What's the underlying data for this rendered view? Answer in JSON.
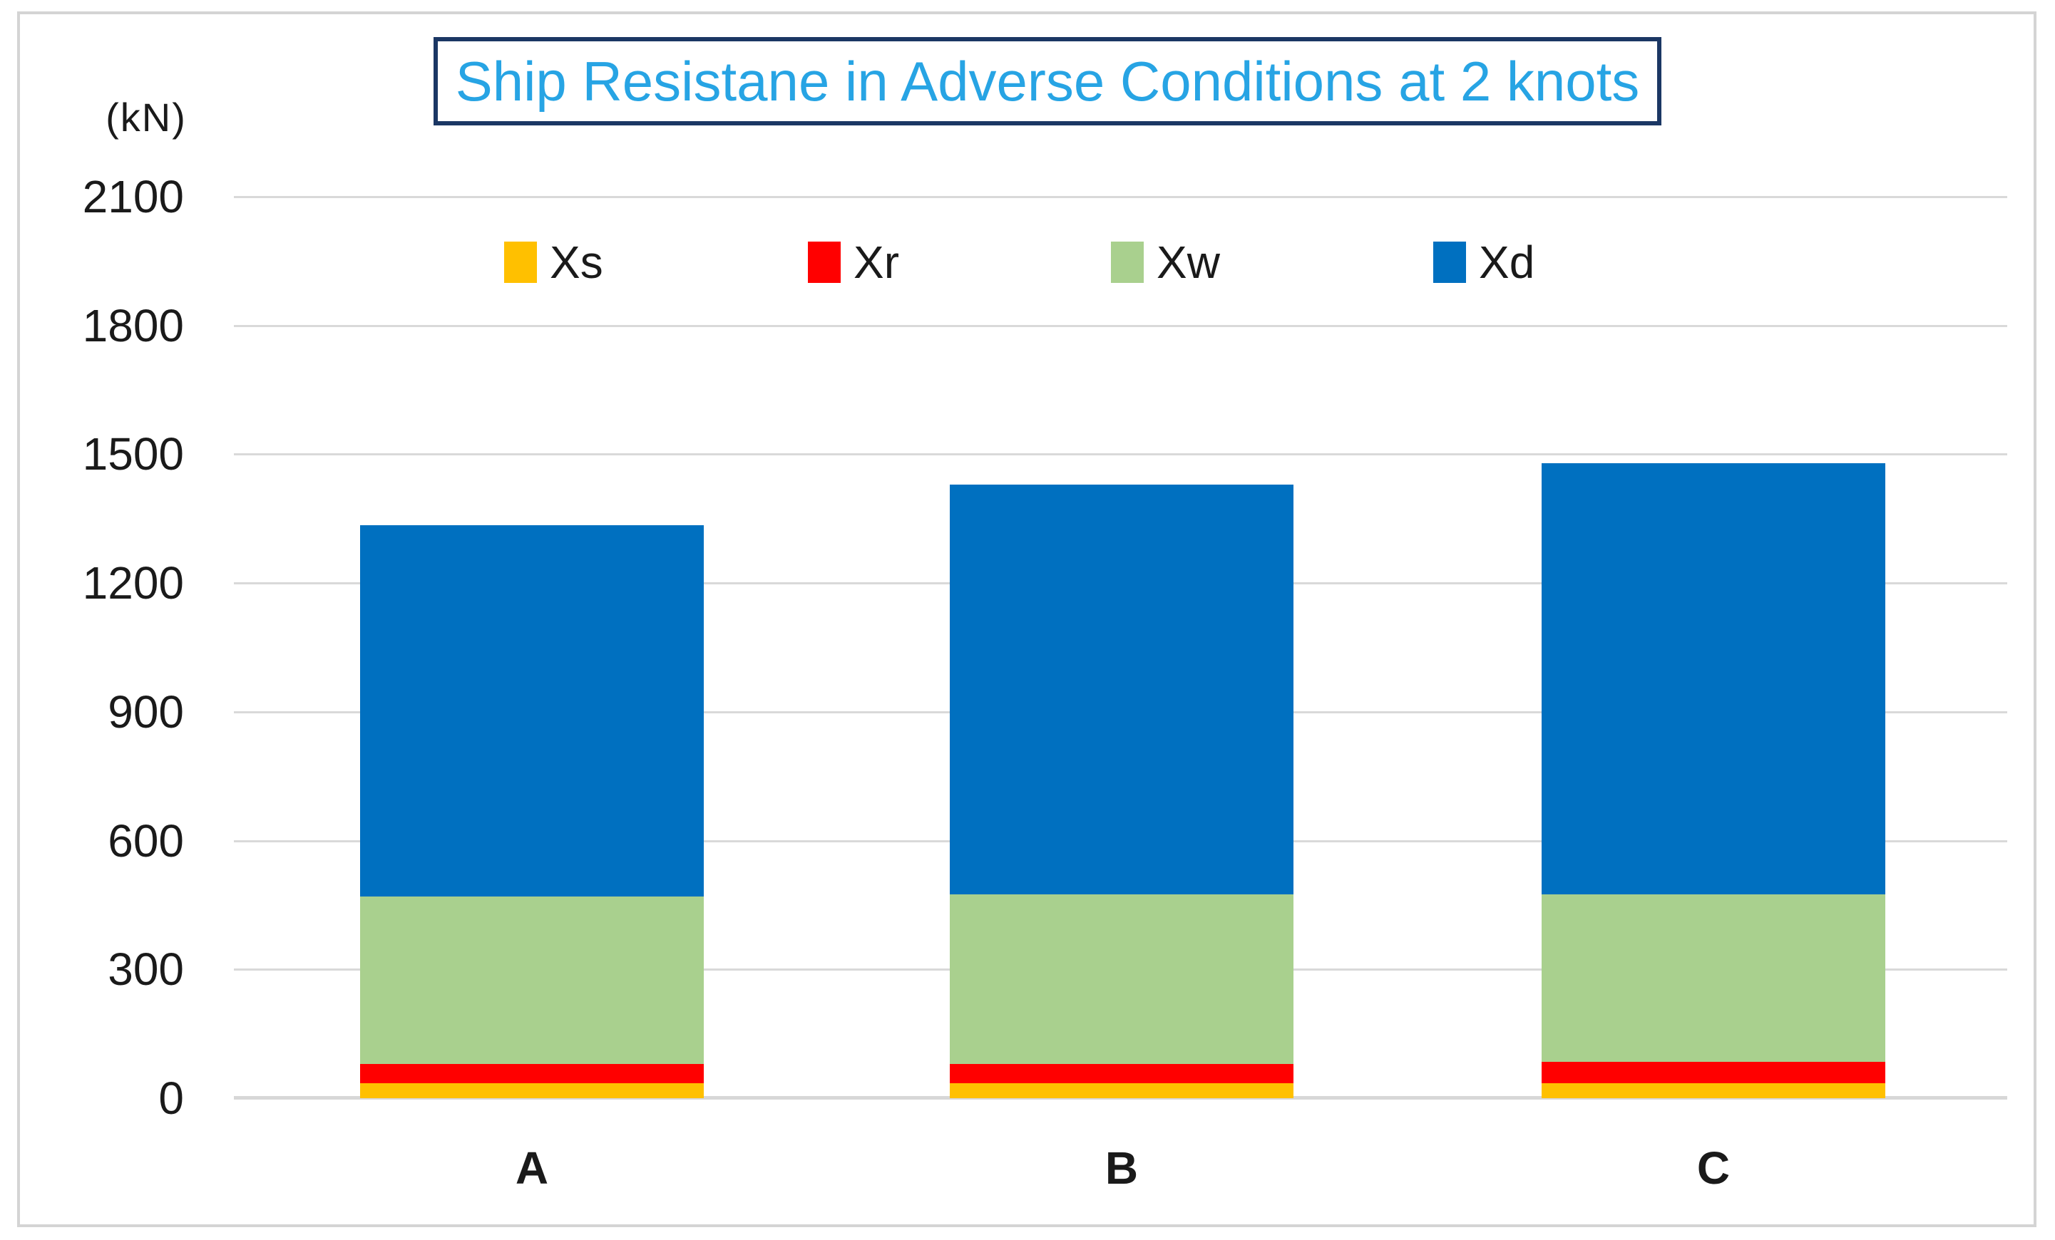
{
  "title": "Ship Resistane in Adverse Conditions at 2 knots",
  "colors": {
    "title_text": "#27a4e4",
    "title_border": "#1b3764",
    "gridline": "#d9d9d9",
    "axis_text": "#1a1a1a",
    "series_xs": "#FFC000",
    "series_xr": "#FF0000",
    "series_xw": "#A9D08E",
    "series_xd": "#0070C0"
  },
  "y_axis": {
    "unit_label": "(kN)",
    "ticks": [
      2100,
      1800,
      1500,
      1200,
      900,
      600,
      300,
      0
    ]
  },
  "x_axis": {
    "categories": [
      "A",
      "B",
      "C"
    ]
  },
  "legend": {
    "entries": [
      "Xs",
      "Xr",
      "Xw",
      "Xd"
    ]
  },
  "chart_data": {
    "type": "bar",
    "stacked": true,
    "title": "Ship Resistane in Adverse Conditions at 2 knots",
    "categories": [
      "A",
      "B",
      "C"
    ],
    "series": [
      {
        "name": "Xs",
        "color": "#FFC000",
        "values": [
          35,
          35,
          35
        ]
      },
      {
        "name": "Xr",
        "color": "#FF0000",
        "values": [
          45,
          45,
          50
        ]
      },
      {
        "name": "Xw",
        "color": "#A9D08E",
        "values": [
          390,
          395,
          390
        ]
      },
      {
        "name": "Xd",
        "color": "#0070C0",
        "values": [
          865,
          955,
          1005
        ]
      }
    ],
    "totals_kN": [
      1335,
      1430,
      1480
    ],
    "ylabel": "(kN)",
    "ylim": [
      0,
      2100
    ],
    "ytick_interval": 300,
    "grid": true,
    "legend_position": "top-center"
  }
}
